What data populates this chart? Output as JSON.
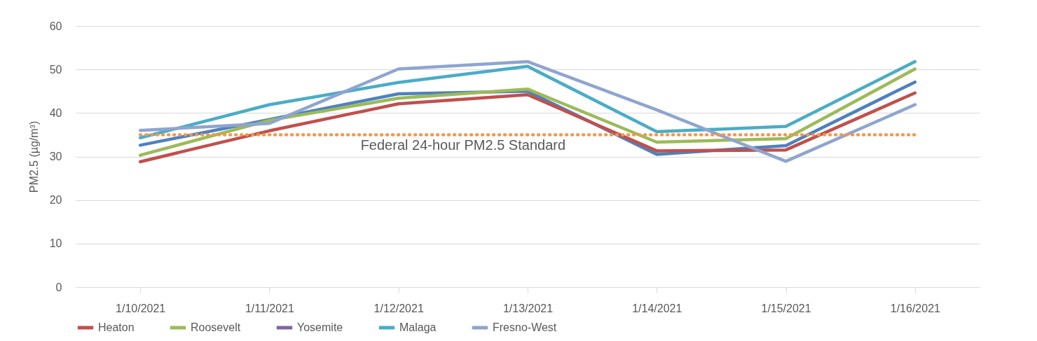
{
  "chart_data": {
    "type": "line",
    "ylabel": "PM2.5 (µg/m³)",
    "categories": [
      "1/10/2021",
      "1/11/2021",
      "1/12/2021",
      "1/13/2021",
      "1/14/2021",
      "1/15/2021",
      "1/16/2021"
    ],
    "series": [
      {
        "color": "#4f81bd",
        "values": [
          32.6,
          38.5,
          44.4,
          45.0,
          30.5,
          32.5,
          47.1
        ]
      },
      {
        "name": "Heaton",
        "color": "#c0504d",
        "values": [
          28.8,
          35.9,
          42.1,
          44.2,
          31.3,
          31.5,
          44.6
        ]
      },
      {
        "name": "Roosevelt",
        "color": "#9bbb59",
        "values": [
          30.3,
          38.3,
          43.4,
          45.5,
          33.3,
          34.1,
          50.1
        ]
      },
      {
        "name": "Yosemite",
        "color": "#8064a2",
        "values": [
          null,
          null,
          null,
          null,
          null,
          null,
          null
        ]
      },
      {
        "name": "Malaga",
        "color": "#4bacc6",
        "values": [
          34.3,
          41.9,
          47.0,
          50.7,
          35.7,
          36.9,
          51.8
        ]
      },
      {
        "name": "Fresno-West",
        "color": "#8ea5cf",
        "values": [
          36.0,
          37.6,
          50.1,
          51.8,
          40.7,
          28.9,
          41.9
        ]
      }
    ],
    "ylim": [
      0,
      60
    ],
    "yticks": [
      0,
      10,
      20,
      30,
      40,
      50,
      60
    ],
    "grid": "y",
    "legend": "bottom",
    "marker": "none",
    "line_style": "solid",
    "ref_lines": [
      {
        "axis": "y",
        "value": 35,
        "label": "Federal 24-hour PM2.5 Standard",
        "color": "#f79646",
        "line_style": "dotted"
      }
    ]
  }
}
